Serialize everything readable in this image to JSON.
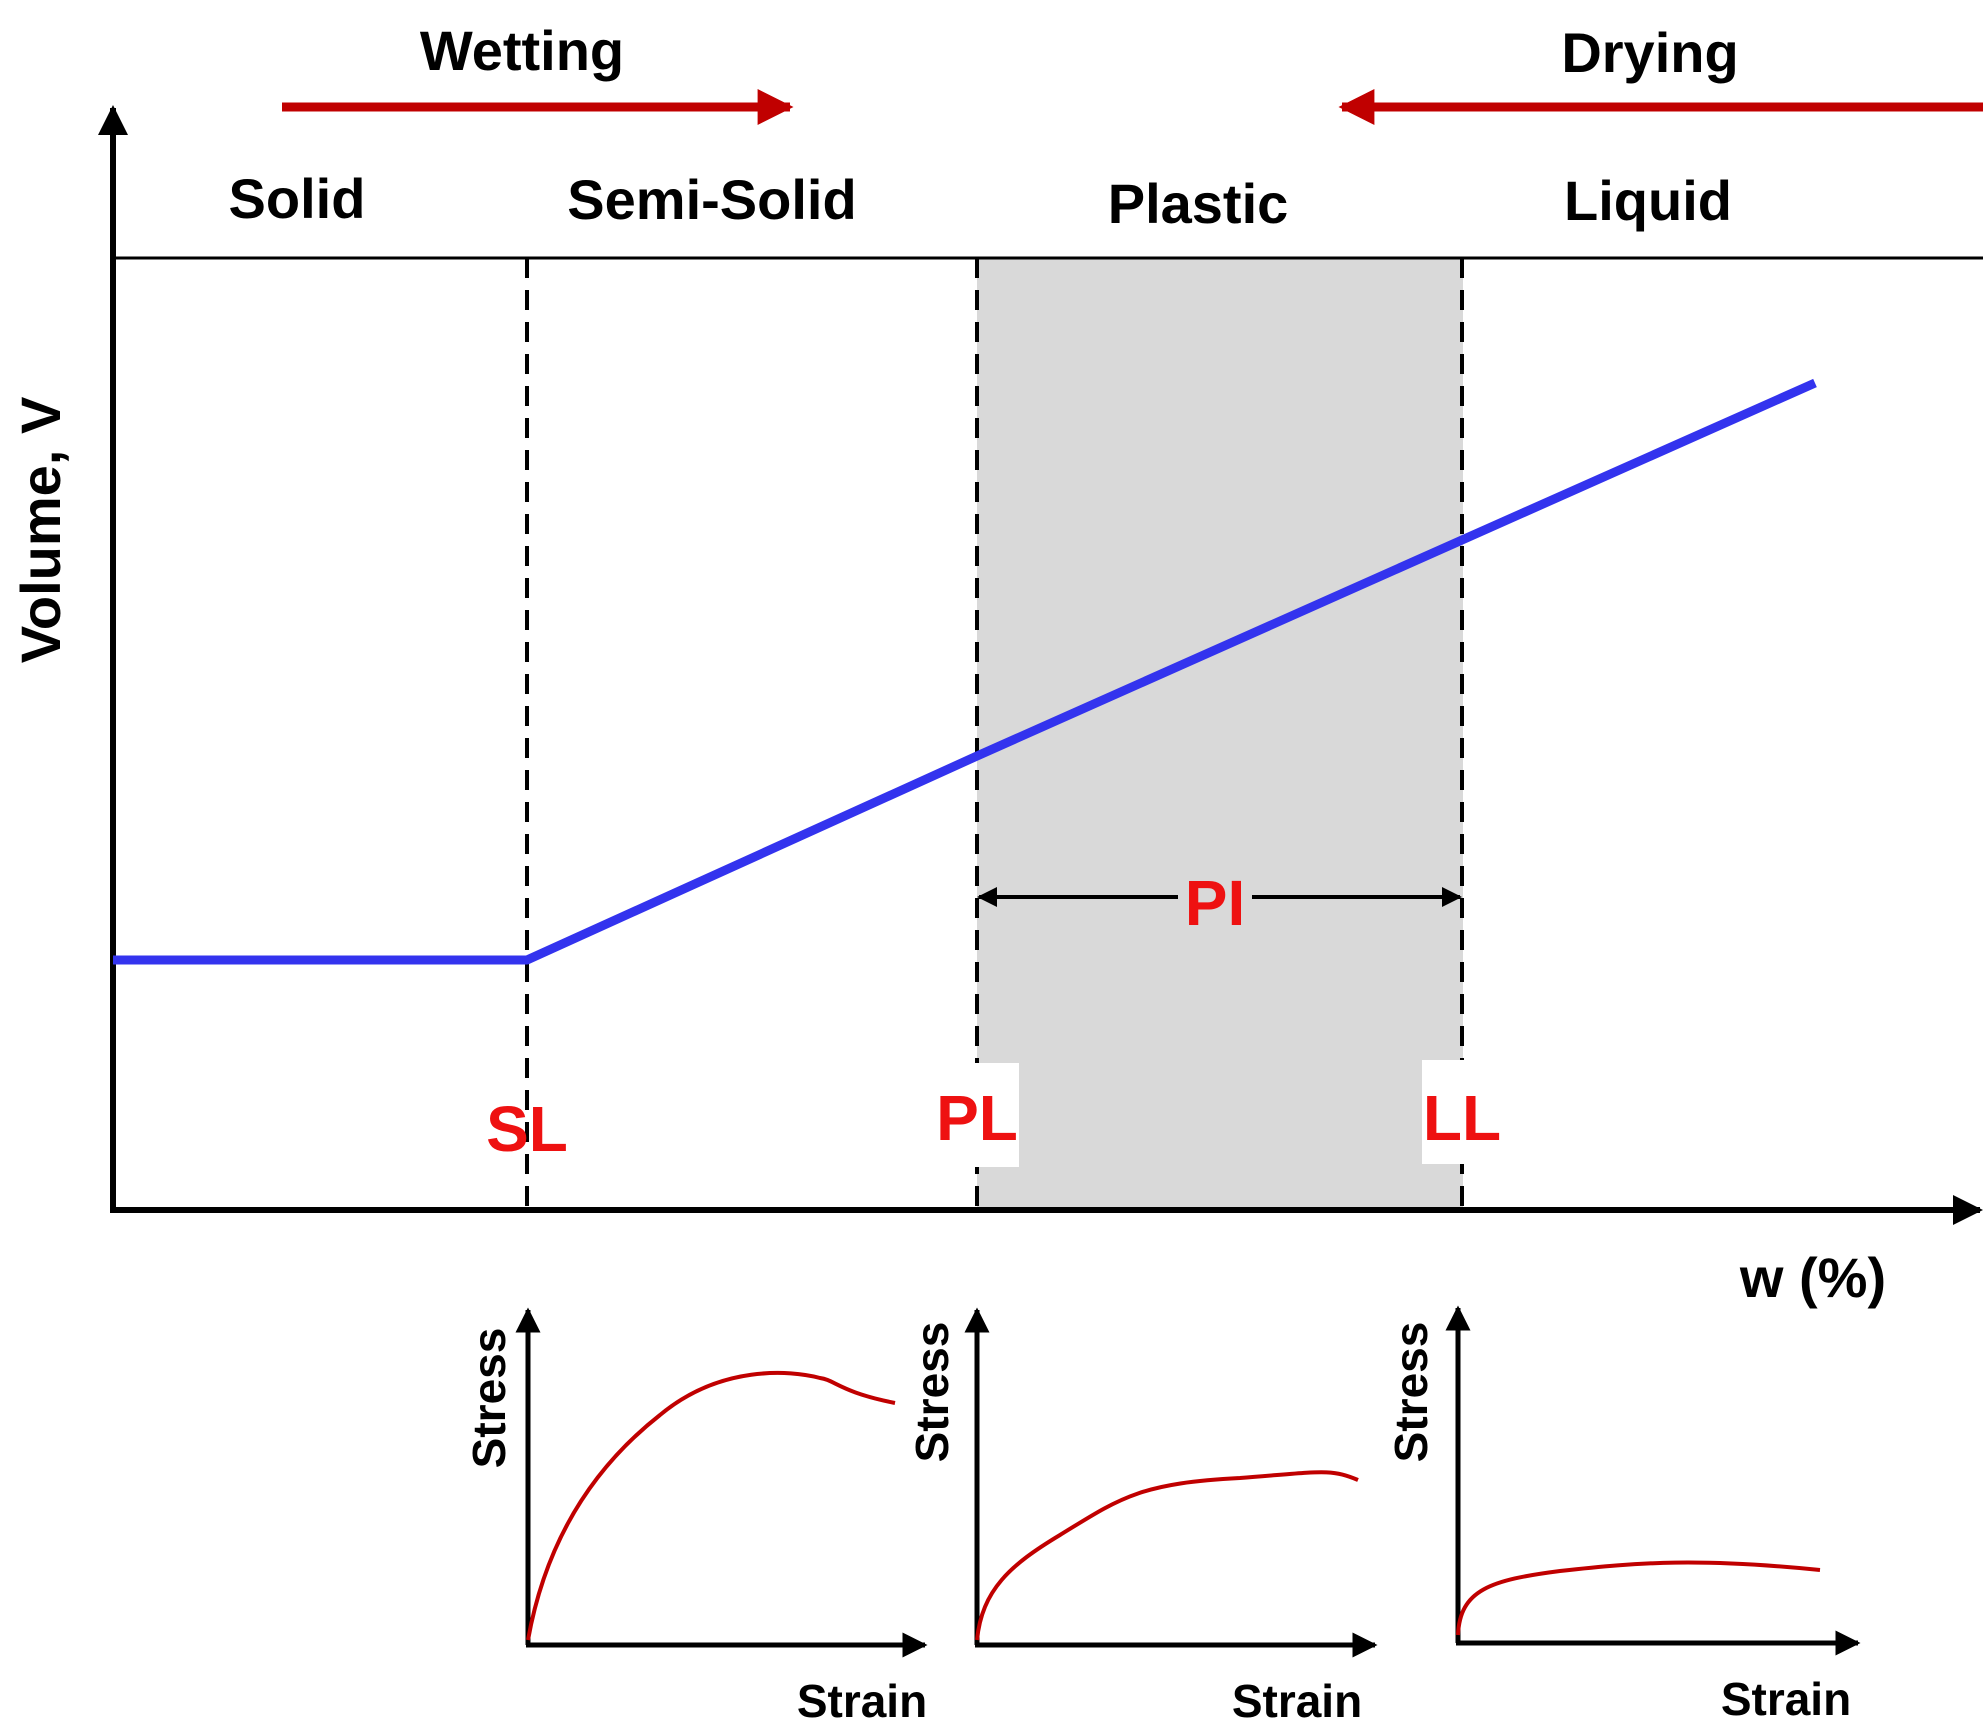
{
  "diagram": {
    "process_labels": {
      "wetting": "Wetting",
      "drying": "Drying"
    },
    "states": [
      "Solid",
      "Semi-Solid",
      "Plastic",
      "Liquid"
    ],
    "y_axis_label": "Volume, V",
    "x_axis_label": "w (%)",
    "limits": {
      "sl": "SL",
      "pl": "PL",
      "ll": "LL",
      "pi": "PI"
    },
    "colors": {
      "curve": "#3333ee",
      "limit_text": "#ee1111",
      "arrow": "#c00000",
      "plastic_fill": "#d9d9d9",
      "stress_curve": "#c00000"
    }
  },
  "mini_charts": {
    "stress_label": "Stress",
    "strain_label": "Strain",
    "items": [
      {
        "state": "semi-solid",
        "shape": "peak-then-softening"
      },
      {
        "state": "plastic",
        "shape": "plateau"
      },
      {
        "state": "liquid",
        "shape": "low-flat"
      }
    ]
  }
}
